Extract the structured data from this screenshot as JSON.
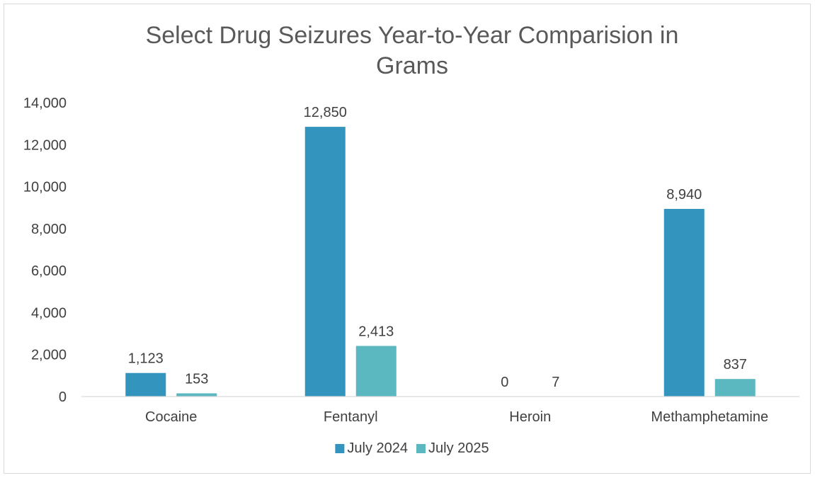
{
  "chart_data": {
    "type": "bar",
    "title": "Select Drug Seizures Year-to-Year Comparision in Grams",
    "title_lines": [
      "Select Drug Seizures Year-to-Year Comparision in",
      "Grams"
    ],
    "categories": [
      "Cocaine",
      "Fentanyl",
      "Heroin",
      "Methamphetamine"
    ],
    "series": [
      {
        "name": "July 2024",
        "values": [
          1123,
          12850,
          0,
          8940
        ],
        "labels": [
          "1,123",
          "12,850",
          "0",
          "8,940"
        ],
        "color": "#3395BD"
      },
      {
        "name": "July 2025",
        "values": [
          153,
          2413,
          7,
          837
        ],
        "labels": [
          "153",
          "2,413",
          "7",
          "837"
        ],
        "color": "#5BB7C0"
      }
    ],
    "ylim": [
      0,
      14000
    ],
    "yticks": [
      0,
      2000,
      4000,
      6000,
      8000,
      10000,
      12000,
      14000
    ],
    "ytick_labels": [
      "0",
      "2,000",
      "4,000",
      "6,000",
      "8,000",
      "10,000",
      "12,000",
      "14,000"
    ],
    "xlabel": "",
    "ylabel": "",
    "grid": false,
    "legend_position": "bottom"
  }
}
